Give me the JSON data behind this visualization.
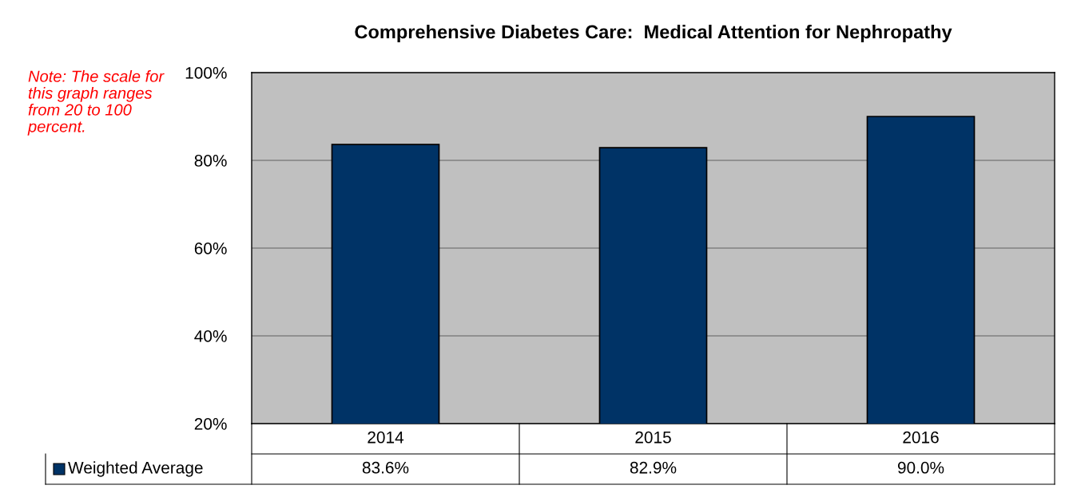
{
  "chart_data": {
    "type": "bar",
    "title": "Comprehensive Diabetes Care:  Medical Attention for Nephropathy",
    "categories": [
      "2014",
      "2015",
      "2016"
    ],
    "series": [
      {
        "name": "Weighted Average",
        "color": "#003366",
        "values": [
          83.6,
          82.9,
          90.0
        ],
        "value_labels": [
          "83.6%",
          "82.9%",
          "90.0%"
        ]
      }
    ],
    "ylim": [
      20,
      100
    ],
    "yticks": [
      {
        "value": 20,
        "label": "20%"
      },
      {
        "value": 40,
        "label": "40%"
      },
      {
        "value": 60,
        "label": "60%"
      },
      {
        "value": 80,
        "label": "80%"
      },
      {
        "value": 100,
        "label": "100%"
      }
    ],
    "grid": "y",
    "legend": "bottom",
    "annotations": [
      "Note: The scale for this graph ranges from 20 to 100 percent."
    ]
  }
}
